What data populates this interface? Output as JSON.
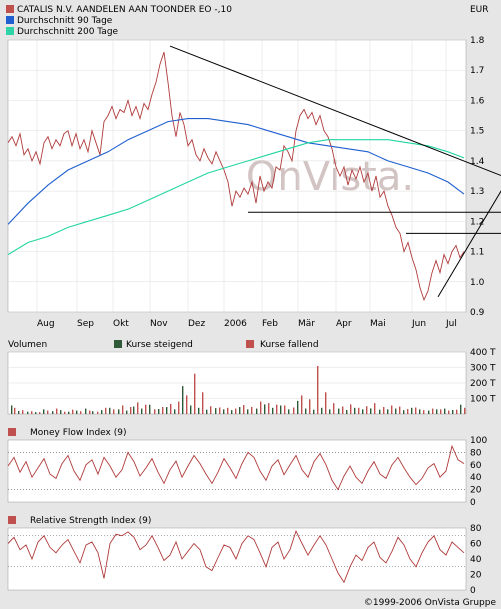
{
  "header": {
    "title": "CATALIS N.V. AANDELEN AAN TOONDER EO -,10",
    "currency": "EUR",
    "legend": [
      {
        "label": "CATALIS N.V. AANDELEN AAN TOONDER EO -,10",
        "color": "#c0504d"
      },
      {
        "label": "Durchschnitt 90 Tage",
        "color": "#1f5fcf"
      },
      {
        "label": "Durchschnitt 200 Tage",
        "color": "#2fd3a8"
      }
    ]
  },
  "watermark": "OnVista.",
  "footer": "©1999-2006 OnVista Gruppe",
  "colors": {
    "price": "#b03a3a",
    "ma90": "#1f5fcf",
    "ma200": "#22d6a0",
    "up": "#2e5a38",
    "down": "#c0504d",
    "indicator": "#b03a3a"
  },
  "chart_data": [
    {
      "type": "line",
      "title": "CATALIS N.V. AANDELEN AAN TOONDER EO -,10",
      "unit": "EUR",
      "x_tick_labels": [
        "Aug",
        "Sep",
        "Okt",
        "Nov",
        "Dez",
        "2006",
        "Feb",
        "Mär",
        "Apr",
        "Mai",
        "Jun",
        "Jul"
      ],
      "ylim": [
        0.9,
        1.8
      ],
      "y_tick_labels": [
        "0.9",
        "1.0",
        "1.1",
        "1.2",
        "1.3",
        "1.4",
        "1.5",
        "1.6",
        "1.7",
        "1.8"
      ],
      "series": [
        {
          "name": "CATALIS N.V. AANDELEN AAN TOONDER EO -,10",
          "x": [
            0,
            4,
            8,
            12,
            16,
            20,
            24,
            28,
            32,
            36,
            40,
            44,
            48,
            52,
            56,
            60,
            64,
            68,
            72,
            76,
            80,
            84,
            88,
            92,
            96,
            100,
            104,
            108,
            112,
            116,
            120,
            124,
            128,
            132,
            136,
            140,
            144,
            148,
            152,
            156,
            160,
            164,
            168,
            172,
            176,
            180,
            184,
            188,
            192,
            196,
            200,
            204,
            208,
            212,
            216,
            220,
            224,
            228,
            232,
            236,
            240,
            244,
            248,
            252,
            256,
            260,
            264,
            268,
            272,
            276,
            280,
            284,
            288,
            292,
            296,
            300,
            304,
            308,
            312,
            316,
            320,
            324,
            328,
            332,
            336,
            340,
            344,
            348,
            352,
            356,
            360,
            364,
            368,
            372,
            376,
            380,
            384,
            388,
            392,
            396,
            400,
            404,
            408,
            412,
            416,
            420,
            424,
            428,
            432,
            436,
            440,
            444,
            448,
            452,
            456
          ],
          "values": [
            1.46,
            1.48,
            1.45,
            1.49,
            1.42,
            1.44,
            1.4,
            1.43,
            1.39,
            1.46,
            1.48,
            1.44,
            1.47,
            1.45,
            1.49,
            1.5,
            1.45,
            1.49,
            1.44,
            1.47,
            1.43,
            1.5,
            1.46,
            1.42,
            1.53,
            1.55,
            1.58,
            1.54,
            1.57,
            1.56,
            1.6,
            1.55,
            1.58,
            1.54,
            1.59,
            1.57,
            1.62,
            1.66,
            1.72,
            1.76,
            1.66,
            1.55,
            1.48,
            1.56,
            1.52,
            1.45,
            1.47,
            1.42,
            1.4,
            1.44,
            1.41,
            1.39,
            1.43,
            1.4,
            1.37,
            1.33,
            1.25,
            1.3,
            1.28,
            1.31,
            1.29,
            1.33,
            1.26,
            1.35,
            1.3,
            1.33,
            1.31,
            1.38,
            1.37,
            1.45,
            1.43,
            1.4,
            1.5,
            1.55,
            1.57,
            1.54,
            1.56,
            1.52,
            1.55,
            1.5,
            1.48,
            1.44,
            1.38,
            1.35,
            1.38,
            1.32,
            1.37,
            1.34,
            1.38,
            1.33,
            1.36,
            1.3,
            1.35,
            1.28,
            1.3,
            1.25,
            1.22,
            1.18,
            1.16,
            1.1,
            1.13,
            1.08,
            1.04,
            0.98,
            0.94,
            0.97,
            1.03,
            1.07,
            1.03,
            1.09,
            1.06,
            1.1,
            1.12,
            1.08,
            1.1
          ]
        },
        {
          "name": "Durchschnitt 90 Tage",
          "x": [
            0,
            20,
            40,
            60,
            80,
            100,
            120,
            140,
            160,
            180,
            200,
            220,
            240,
            260,
            280,
            300,
            320,
            340,
            360,
            380,
            400,
            420,
            440,
            456
          ],
          "values": [
            1.19,
            1.26,
            1.32,
            1.37,
            1.4,
            1.43,
            1.47,
            1.5,
            1.53,
            1.54,
            1.54,
            1.53,
            1.52,
            1.5,
            1.48,
            1.46,
            1.45,
            1.44,
            1.43,
            1.4,
            1.38,
            1.36,
            1.33,
            1.29
          ]
        },
        {
          "name": "Durchschnitt 200 Tage",
          "x": [
            0,
            20,
            40,
            60,
            80,
            100,
            120,
            140,
            160,
            180,
            200,
            220,
            240,
            260,
            280,
            300,
            320,
            340,
            360,
            380,
            400,
            420,
            440,
            456
          ],
          "values": [
            1.09,
            1.13,
            1.15,
            1.18,
            1.2,
            1.22,
            1.24,
            1.27,
            1.3,
            1.33,
            1.36,
            1.38,
            1.4,
            1.42,
            1.44,
            1.46,
            1.47,
            1.47,
            1.47,
            1.47,
            1.46,
            1.45,
            1.43,
            1.41
          ]
        }
      ],
      "trendlines": [
        {
          "from": [
            162,
            1.78
          ],
          "to": [
            502,
            1.34
          ]
        },
        {
          "from": [
            240,
            1.23
          ],
          "to": [
            502,
            1.23
          ]
        },
        {
          "from": [
            398,
            1.16
          ],
          "to": [
            502,
            1.16
          ]
        },
        {
          "from": [
            430,
            0.95
          ],
          "to": [
            502,
            1.35
          ]
        }
      ]
    },
    {
      "type": "bar",
      "title": "Volumen",
      "legend": [
        {
          "label": "Kurse steigend",
          "color": "#2e5a38"
        },
        {
          "label": "Kurse fallend",
          "color": "#c0504d"
        }
      ],
      "ylim": [
        0,
        400
      ],
      "y_tick_labels": [
        "100 T",
        "200 T",
        "300 T",
        "400 T"
      ],
      "series": [
        {
          "name": "Kurse steigend",
          "x": [
            3,
            10,
            19,
            27,
            35,
            44,
            52,
            60,
            68,
            77,
            84,
            93,
            101,
            110,
            118,
            125,
            133,
            141,
            150,
            158,
            166,
            174,
            182,
            190,
            198,
            207,
            215,
            223,
            231,
            239,
            248,
            256,
            264,
            272,
            280,
            289,
            297,
            305,
            313,
            321,
            330,
            338,
            346,
            354,
            362,
            371,
            379,
            387,
            395,
            403,
            411,
            420,
            428,
            436,
            444,
            452
          ],
          "values": [
            55,
            20,
            15,
            12,
            30,
            18,
            25,
            15,
            22,
            35,
            18,
            25,
            40,
            30,
            22,
            48,
            35,
            60,
            32,
            45,
            30,
            180,
            55,
            40,
            28,
            38,
            30,
            25,
            45,
            30,
            35,
            62,
            40,
            55,
            30,
            85,
            35,
            28,
            40,
            30,
            35,
            26,
            40,
            30,
            36,
            28,
            30,
            35,
            25,
            40,
            30,
            22,
            30,
            35,
            26,
            60
          ]
        },
        {
          "name": "Kurse fallend",
          "x": [
            6,
            14,
            23,
            31,
            39,
            48,
            56,
            64,
            72,
            81,
            89,
            97,
            105,
            114,
            122,
            129,
            137,
            146,
            154,
            162,
            170,
            178,
            186,
            194,
            202,
            211,
            219,
            227,
            235,
            243,
            252,
            260,
            268,
            276,
            285,
            293,
            301,
            309,
            317,
            325,
            334,
            342,
            350,
            358,
            366,
            375,
            383,
            391,
            399,
            407,
            415,
            424,
            432,
            440,
            448,
            456
          ],
          "values": [
            40,
            25,
            18,
            12,
            22,
            35,
            15,
            28,
            18,
            22,
            15,
            40,
            30,
            55,
            45,
            75,
            60,
            30,
            45,
            65,
            80,
            120,
            260,
            140,
            50,
            42,
            40,
            35,
            58,
            45,
            80,
            70,
            60,
            55,
            42,
            120,
            95,
            310,
            140,
            70,
            48,
            62,
            40,
            50,
            70,
            45,
            55,
            48,
            32,
            42,
            25,
            35,
            30,
            22,
            28,
            40
          ]
        }
      ]
    },
    {
      "type": "line",
      "title": "Money Flow Index (9)",
      "ylim": [
        0,
        100
      ],
      "y_tick_labels": [
        "0",
        "20",
        "40",
        "60",
        "80",
        "100"
      ],
      "series": [
        {
          "name": "Money Flow Index (9)",
          "x": [
            0,
            6,
            12,
            18,
            24,
            30,
            36,
            42,
            48,
            54,
            60,
            66,
            72,
            78,
            84,
            90,
            96,
            102,
            108,
            114,
            120,
            126,
            132,
            138,
            144,
            150,
            156,
            162,
            168,
            174,
            180,
            186,
            192,
            198,
            204,
            210,
            216,
            222,
            228,
            234,
            240,
            246,
            252,
            258,
            264,
            270,
            276,
            282,
            288,
            294,
            300,
            306,
            312,
            318,
            324,
            330,
            336,
            342,
            348,
            354,
            360,
            366,
            372,
            378,
            384,
            390,
            396,
            402,
            408,
            414,
            420,
            426,
            432,
            438,
            444,
            450,
            456
          ],
          "values": [
            58,
            72,
            48,
            65,
            40,
            55,
            70,
            45,
            38,
            62,
            75,
            50,
            35,
            60,
            68,
            45,
            72,
            58,
            40,
            52,
            80,
            65,
            42,
            55,
            70,
            48,
            30,
            52,
            66,
            40,
            58,
            75,
            62,
            45,
            30,
            48,
            70,
            55,
            38,
            62,
            80,
            72,
            50,
            35,
            58,
            68,
            44,
            60,
            75,
            52,
            40,
            65,
            78,
            60,
            35,
            20,
            42,
            58,
            40,
            30,
            50,
            65,
            45,
            38,
            60,
            72,
            55,
            40,
            28,
            38,
            55,
            62,
            40,
            50,
            90,
            68,
            62
          ]
        }
      ]
    },
    {
      "type": "line",
      "title": "Relative Strength Index (9)",
      "ylim": [
        0,
        80
      ],
      "y_tick_labels": [
        "0",
        "20",
        "40",
        "60",
        "80"
      ],
      "series": [
        {
          "name": "Relative Strength Index (9)",
          "x": [
            0,
            6,
            12,
            18,
            24,
            30,
            36,
            42,
            48,
            54,
            60,
            66,
            72,
            78,
            84,
            90,
            96,
            102,
            108,
            114,
            120,
            126,
            132,
            138,
            144,
            150,
            156,
            162,
            168,
            174,
            180,
            186,
            192,
            198,
            204,
            210,
            216,
            222,
            228,
            234,
            240,
            246,
            252,
            258,
            264,
            270,
            276,
            282,
            288,
            294,
            300,
            306,
            312,
            318,
            324,
            330,
            336,
            342,
            348,
            354,
            360,
            366,
            372,
            378,
            384,
            390,
            396,
            402,
            408,
            414,
            420,
            426,
            432,
            438,
            444,
            450,
            456
          ],
          "values": [
            60,
            68,
            52,
            58,
            40,
            62,
            70,
            55,
            48,
            58,
            65,
            50,
            35,
            58,
            62,
            48,
            15,
            60,
            72,
            70,
            75,
            68,
            52,
            58,
            70,
            55,
            38,
            45,
            62,
            40,
            50,
            60,
            52,
            30,
            25,
            42,
            58,
            55,
            40,
            60,
            70,
            65,
            48,
            30,
            55,
            62,
            40,
            52,
            76,
            60,
            45,
            58,
            70,
            58,
            40,
            22,
            10,
            30,
            45,
            38,
            55,
            62,
            42,
            35,
            50,
            68,
            58,
            40,
            30,
            48,
            62,
            70,
            52,
            45,
            62,
            55,
            48
          ]
        }
      ]
    }
  ]
}
